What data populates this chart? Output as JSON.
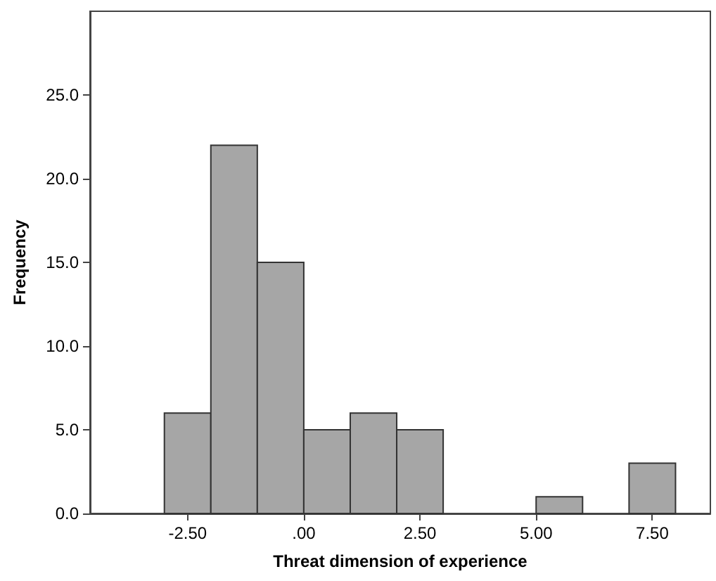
{
  "chart_data": {
    "type": "histogram",
    "xlabel": "Threat dimension of experience",
    "ylabel": "Frequency",
    "bins": [
      -3,
      -2,
      -1,
      0,
      1,
      2,
      3,
      4,
      5,
      6,
      7,
      8
    ],
    "values": [
      6,
      22,
      15,
      5,
      6,
      5,
      0,
      0,
      1,
      0,
      3
    ],
    "color": "#a6a6a6",
    "xlim": [
      -4.6,
      8.75
    ],
    "ylim": [
      0,
      30
    ],
    "xticks": [
      {
        "value": -2.5,
        "label": "-2.50"
      },
      {
        "value": 0,
        "label": ".00"
      },
      {
        "value": 2.5,
        "label": "2.50"
      },
      {
        "value": 5,
        "label": "5.00"
      },
      {
        "value": 7.5,
        "label": "7.50"
      }
    ],
    "yticks": [
      {
        "value": 0,
        "label": "0.0"
      },
      {
        "value": 5,
        "label": "5.0"
      },
      {
        "value": 10,
        "label": "10.0"
      },
      {
        "value": 15,
        "label": "15.0"
      },
      {
        "value": 20,
        "label": "20.0"
      },
      {
        "value": 25,
        "label": "25.0"
      }
    ],
    "grid": false
  }
}
